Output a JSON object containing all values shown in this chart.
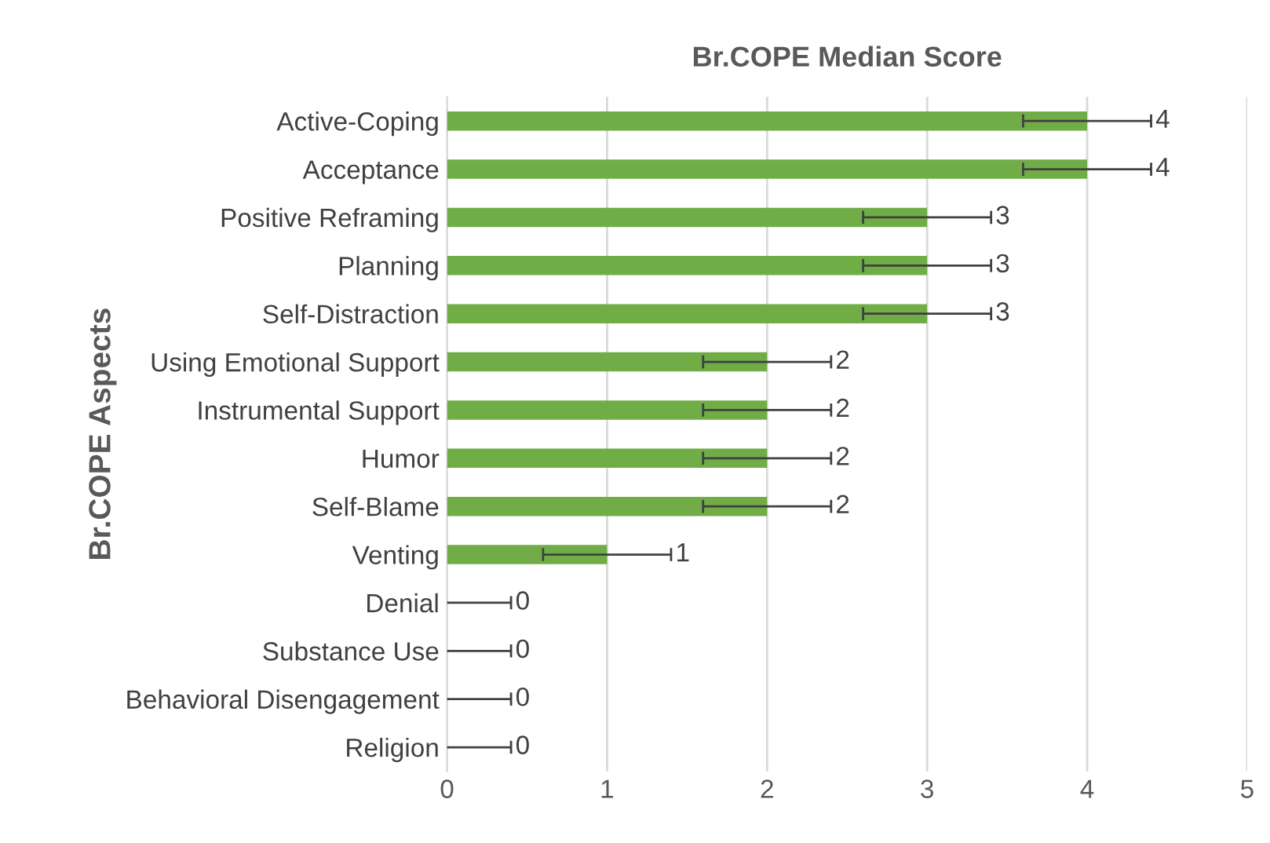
{
  "chart_data": {
    "type": "bar",
    "orientation": "horizontal",
    "title": "Br.COPE Median Score",
    "ylabel": "Br.COPE Aspects",
    "categories": [
      "Active-Coping",
      "Acceptance",
      "Positive Reframing",
      "Planning",
      "Self-Distraction",
      "Using Emotional Support",
      "Instrumental Support",
      "Humor",
      "Self-Blame",
      "Venting",
      "Denial",
      "Substance Use",
      "Behavioral Disengagement",
      "Religion"
    ],
    "values": [
      4,
      4,
      3,
      3,
      3,
      2,
      2,
      2,
      2,
      1,
      0,
      0,
      0,
      0
    ],
    "errors": [
      0.4,
      0.4,
      0.4,
      0.4,
      0.4,
      0.4,
      0.4,
      0.4,
      0.4,
      0.4,
      0.4,
      0.4,
      0.4,
      0.4
    ],
    "color": "#70ad47",
    "xlim": [
      0,
      5
    ],
    "xticks": [
      0,
      1,
      2,
      3,
      4,
      5
    ],
    "grid": "x",
    "data_labels": true,
    "legend": false
  }
}
